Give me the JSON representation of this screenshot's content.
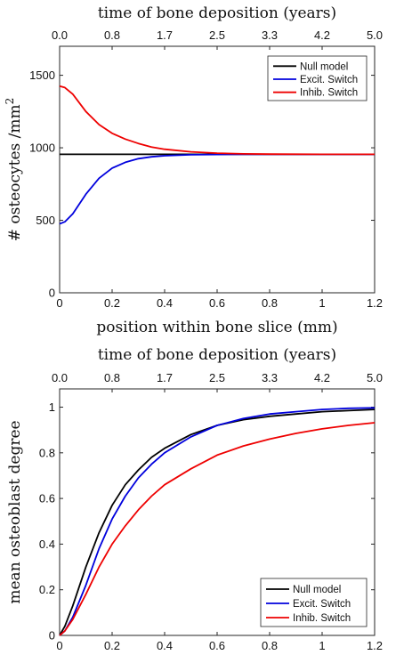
{
  "chart_data": [
    {
      "type": "line",
      "xlabel": "position within bone slice (mm)",
      "ylabel": "# osteocytes /mm",
      "ylabel_sup": "2",
      "top_xlabel": "time of bone deposition (years)",
      "xlim": [
        0,
        1.2
      ],
      "ylim": [
        0,
        1700
      ],
      "xticks": [
        "0",
        "0.2",
        "0.4",
        "0.6",
        "0.8",
        "1",
        "1.2"
      ],
      "xtick_values": [
        0,
        0.2,
        0.4,
        0.6,
        0.8,
        1.0,
        1.2
      ],
      "yticks": [
        "0",
        "500",
        "1000",
        "1500"
      ],
      "ytick_values": [
        0,
        500,
        1000,
        1500
      ],
      "top_xticks": [
        "0.0",
        "0.8",
        "1.7",
        "2.5",
        "3.3",
        "4.2",
        "5.0"
      ],
      "grid": false,
      "legend_position": "top-right",
      "series": [
        {
          "name": "Null model",
          "color": "#000000",
          "x": [
            0,
            0.1,
            0.2,
            0.3,
            0.4,
            0.5,
            0.6,
            0.7,
            0.8,
            0.9,
            1.0,
            1.1,
            1.2
          ],
          "y": [
            955,
            955,
            955,
            955,
            955,
            955,
            955,
            955,
            955,
            955,
            955,
            955,
            955
          ]
        },
        {
          "name": "Excit. Switch",
          "color": "#0000dd",
          "x": [
            0,
            0.02,
            0.05,
            0.1,
            0.15,
            0.2,
            0.25,
            0.3,
            0.35,
            0.4,
            0.5,
            0.6,
            0.7,
            0.8,
            1.0,
            1.2
          ],
          "y": [
            475,
            490,
            545,
            680,
            790,
            860,
            900,
            925,
            938,
            945,
            952,
            954,
            955,
            955,
            955,
            955
          ]
        },
        {
          "name": "Inhib. Switch",
          "color": "#ee0000",
          "x": [
            0,
            0.02,
            0.05,
            0.1,
            0.15,
            0.2,
            0.25,
            0.3,
            0.35,
            0.4,
            0.5,
            0.6,
            0.7,
            0.8,
            1.0,
            1.2
          ],
          "y": [
            1425,
            1415,
            1370,
            1250,
            1160,
            1100,
            1060,
            1030,
            1005,
            990,
            972,
            963,
            958,
            956,
            955,
            955
          ]
        }
      ]
    },
    {
      "type": "line",
      "xlabel": "",
      "ylabel": "mean osteoblast degree",
      "top_xlabel": "time of bone deposition (years)",
      "xlim": [
        0,
        1.2
      ],
      "ylim": [
        0,
        1.08
      ],
      "xticks": [
        "0",
        "0.2",
        "0.4",
        "0.6",
        "0.8",
        "1",
        "1.2"
      ],
      "xtick_values": [
        0,
        0.2,
        0.4,
        0.6,
        0.8,
        1.0,
        1.2
      ],
      "yticks": [
        "0",
        "0.2",
        "0.4",
        "0.6",
        "0.8",
        "1"
      ],
      "ytick_values": [
        0,
        0.2,
        0.4,
        0.6,
        0.8,
        1.0
      ],
      "top_xticks": [
        "0.0",
        "0.8",
        "1.7",
        "2.5",
        "3.3",
        "4.2",
        "5.0"
      ],
      "grid": false,
      "legend_position": "bottom-right",
      "series": [
        {
          "name": "Null model",
          "color": "#000000",
          "x": [
            0,
            0.02,
            0.05,
            0.1,
            0.15,
            0.2,
            0.25,
            0.3,
            0.35,
            0.4,
            0.5,
            0.6,
            0.7,
            0.8,
            0.9,
            1.0,
            1.1,
            1.2
          ],
          "y": [
            0,
            0.04,
            0.13,
            0.3,
            0.45,
            0.57,
            0.66,
            0.725,
            0.78,
            0.82,
            0.88,
            0.92,
            0.945,
            0.96,
            0.97,
            0.98,
            0.985,
            0.99
          ]
        },
        {
          "name": "Excit. Switch",
          "color": "#0000dd",
          "x": [
            0,
            0.02,
            0.05,
            0.1,
            0.15,
            0.2,
            0.25,
            0.3,
            0.35,
            0.4,
            0.5,
            0.6,
            0.7,
            0.8,
            0.9,
            1.0,
            1.1,
            1.2
          ],
          "y": [
            0,
            0.02,
            0.08,
            0.22,
            0.38,
            0.51,
            0.61,
            0.69,
            0.75,
            0.8,
            0.87,
            0.92,
            0.95,
            0.97,
            0.98,
            0.99,
            0.995,
            0.997
          ]
        },
        {
          "name": "Inhib. Switch",
          "color": "#ee0000",
          "x": [
            0,
            0.02,
            0.05,
            0.1,
            0.15,
            0.2,
            0.25,
            0.3,
            0.35,
            0.4,
            0.5,
            0.6,
            0.7,
            0.8,
            0.9,
            1.0,
            1.1,
            1.2
          ],
          "y": [
            0,
            0.02,
            0.07,
            0.18,
            0.3,
            0.4,
            0.48,
            0.55,
            0.61,
            0.66,
            0.73,
            0.79,
            0.83,
            0.86,
            0.885,
            0.905,
            0.92,
            0.932
          ]
        }
      ]
    }
  ]
}
